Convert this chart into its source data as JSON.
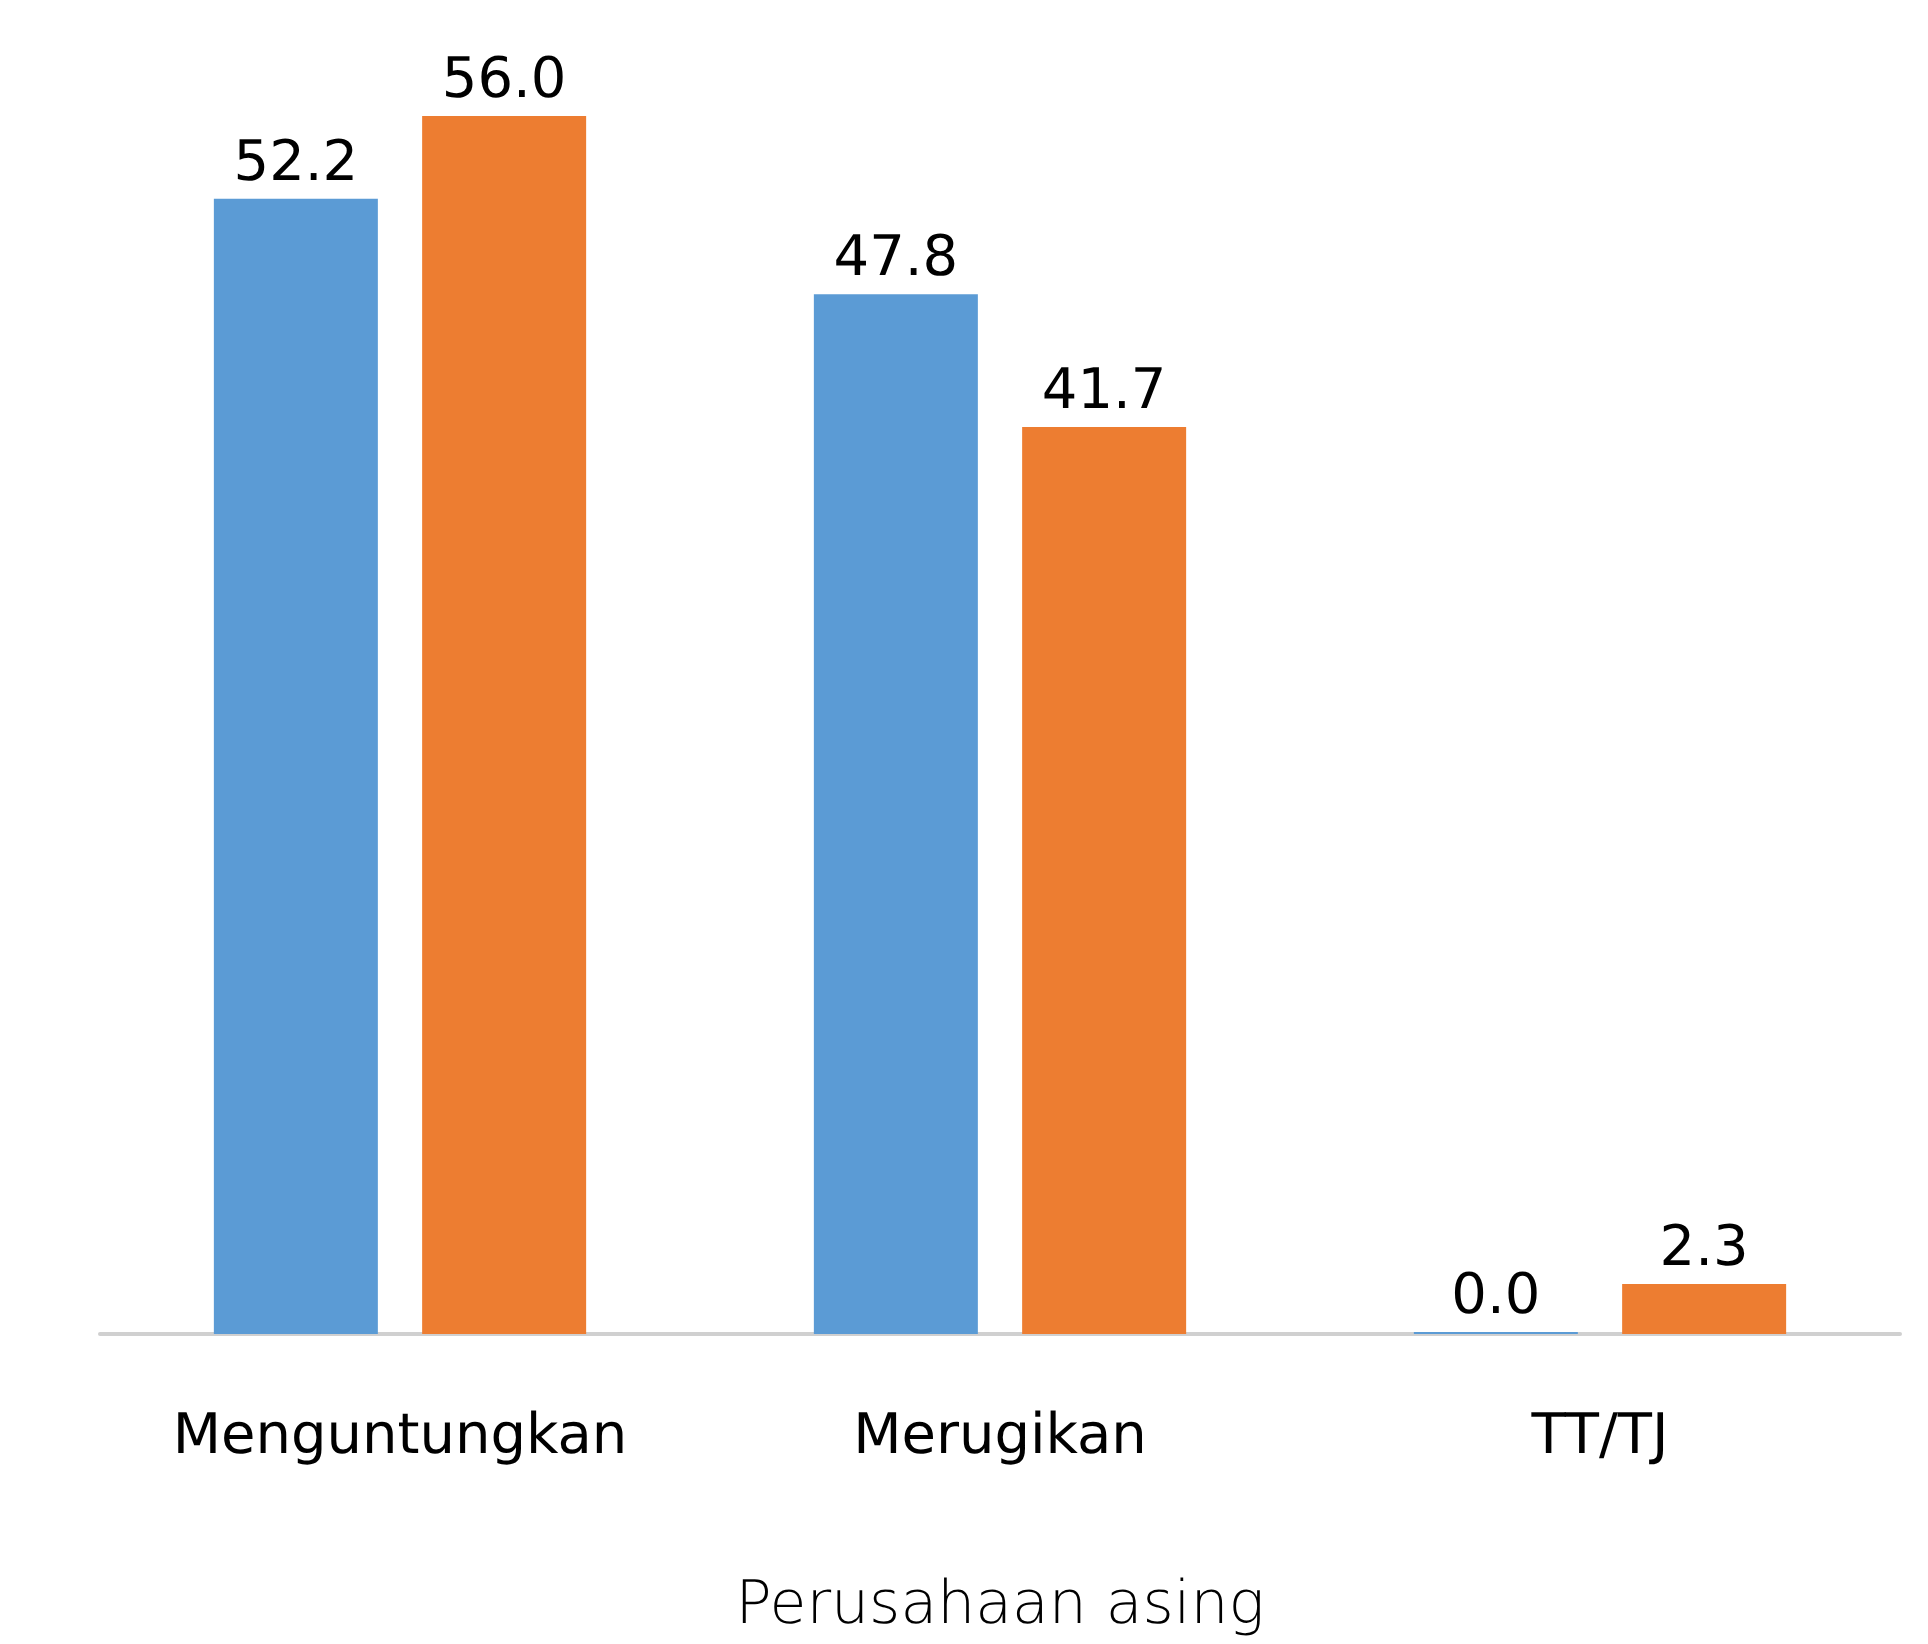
{
  "chart_data": {
    "type": "bar",
    "xlabel": "Perusahaan asing",
    "categories": [
      "Menguntungkan",
      "Merugikan",
      "TT/TJ"
    ],
    "series": [
      {
        "color": "#5b9bd5",
        "values": [
          52.2,
          47.8,
          0.0
        ],
        "value_labels": [
          "52.2",
          "47.8",
          "0.0"
        ]
      },
      {
        "color": "#ed7d31",
        "values": [
          56.0,
          41.7,
          2.3
        ],
        "value_labels": [
          "56.0",
          "41.7",
          "2.3"
        ]
      }
    ]
  }
}
